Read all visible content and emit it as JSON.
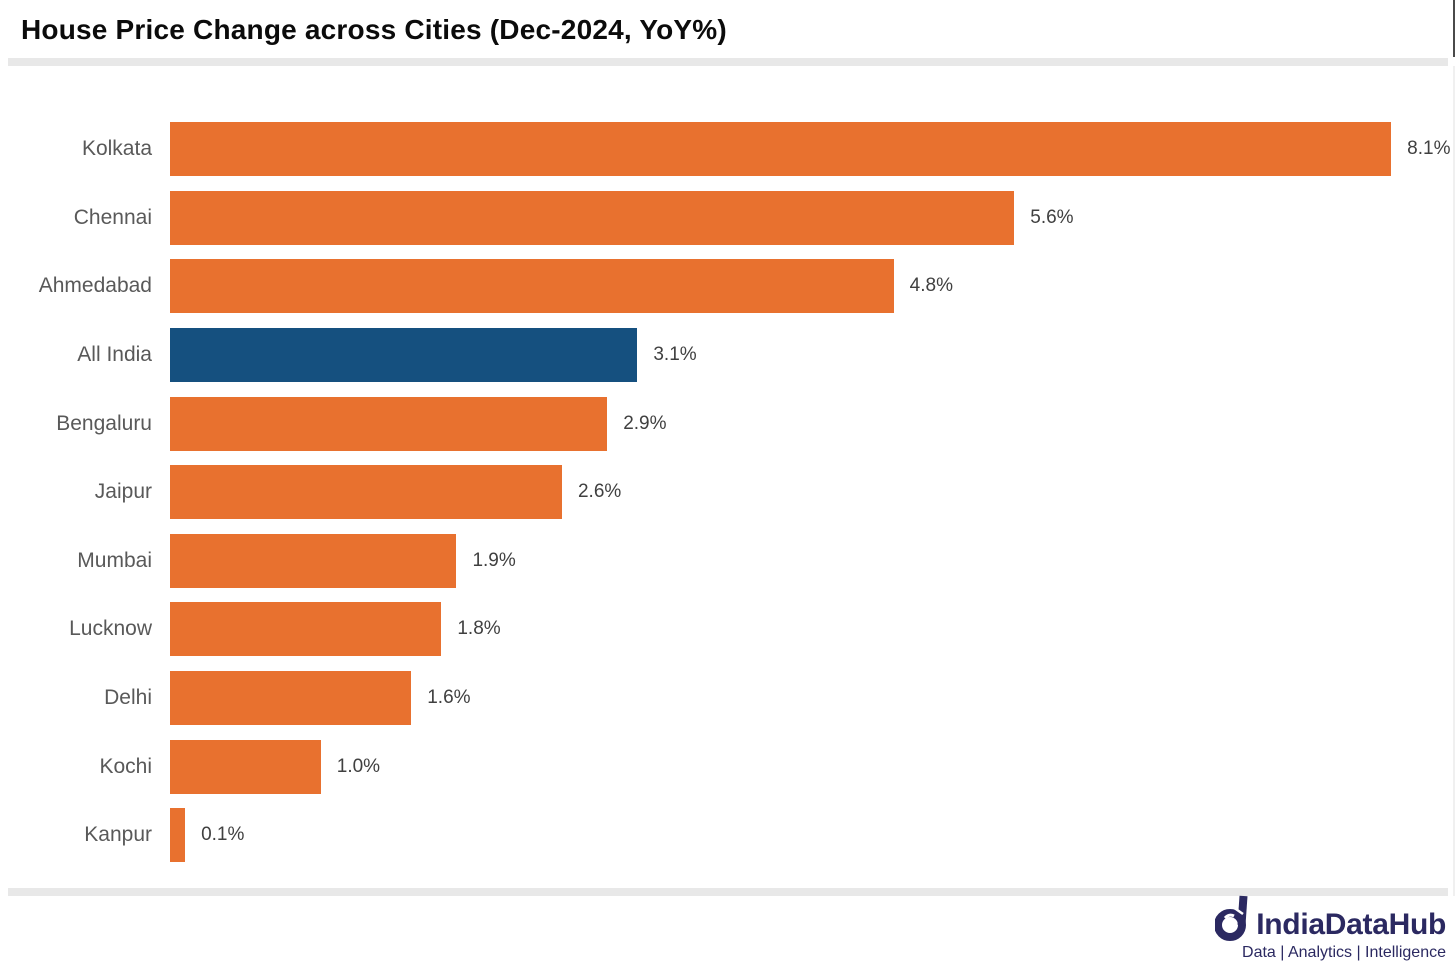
{
  "header": {
    "title": "House Price Change across Cities (Dec-2024, YoY%)"
  },
  "chart_data": {
    "type": "bar",
    "orientation": "horizontal",
    "title": "House Price Change across Cities (Dec-2024, YoY%)",
    "categories": [
      "Kolkata",
      "Chennai",
      "Ahmedabad",
      "All India",
      "Bengaluru",
      "Jaipur",
      "Mumbai",
      "Lucknow",
      "Delhi",
      "Kochi",
      "Kanpur"
    ],
    "values": [
      8.1,
      5.6,
      4.8,
      3.1,
      2.9,
      2.6,
      1.9,
      1.8,
      1.6,
      1.0,
      0.1
    ],
    "value_labels": [
      "8.1%",
      "5.6%",
      "4.8%",
      "3.1%",
      "2.9%",
      "2.6%",
      "1.9%",
      "1.8%",
      "1.6%",
      "1.0%",
      "0.1%"
    ],
    "highlight_category": "All India",
    "highlight_index": 3,
    "bar_color": "#e8712f",
    "highlight_color": "#15507f",
    "category_label_color": "#595959",
    "value_label_color": "#404040",
    "xlim": [
      0,
      8.53
    ],
    "xlabel": "",
    "ylabel": "",
    "grid": false,
    "legend": false
  },
  "footer": {
    "brand": "IndiaDataHub",
    "tagline": "Data | Analytics | Intelligence",
    "logo_icon": "india-datahub-d-mark",
    "brand_color": "#2b2961"
  }
}
